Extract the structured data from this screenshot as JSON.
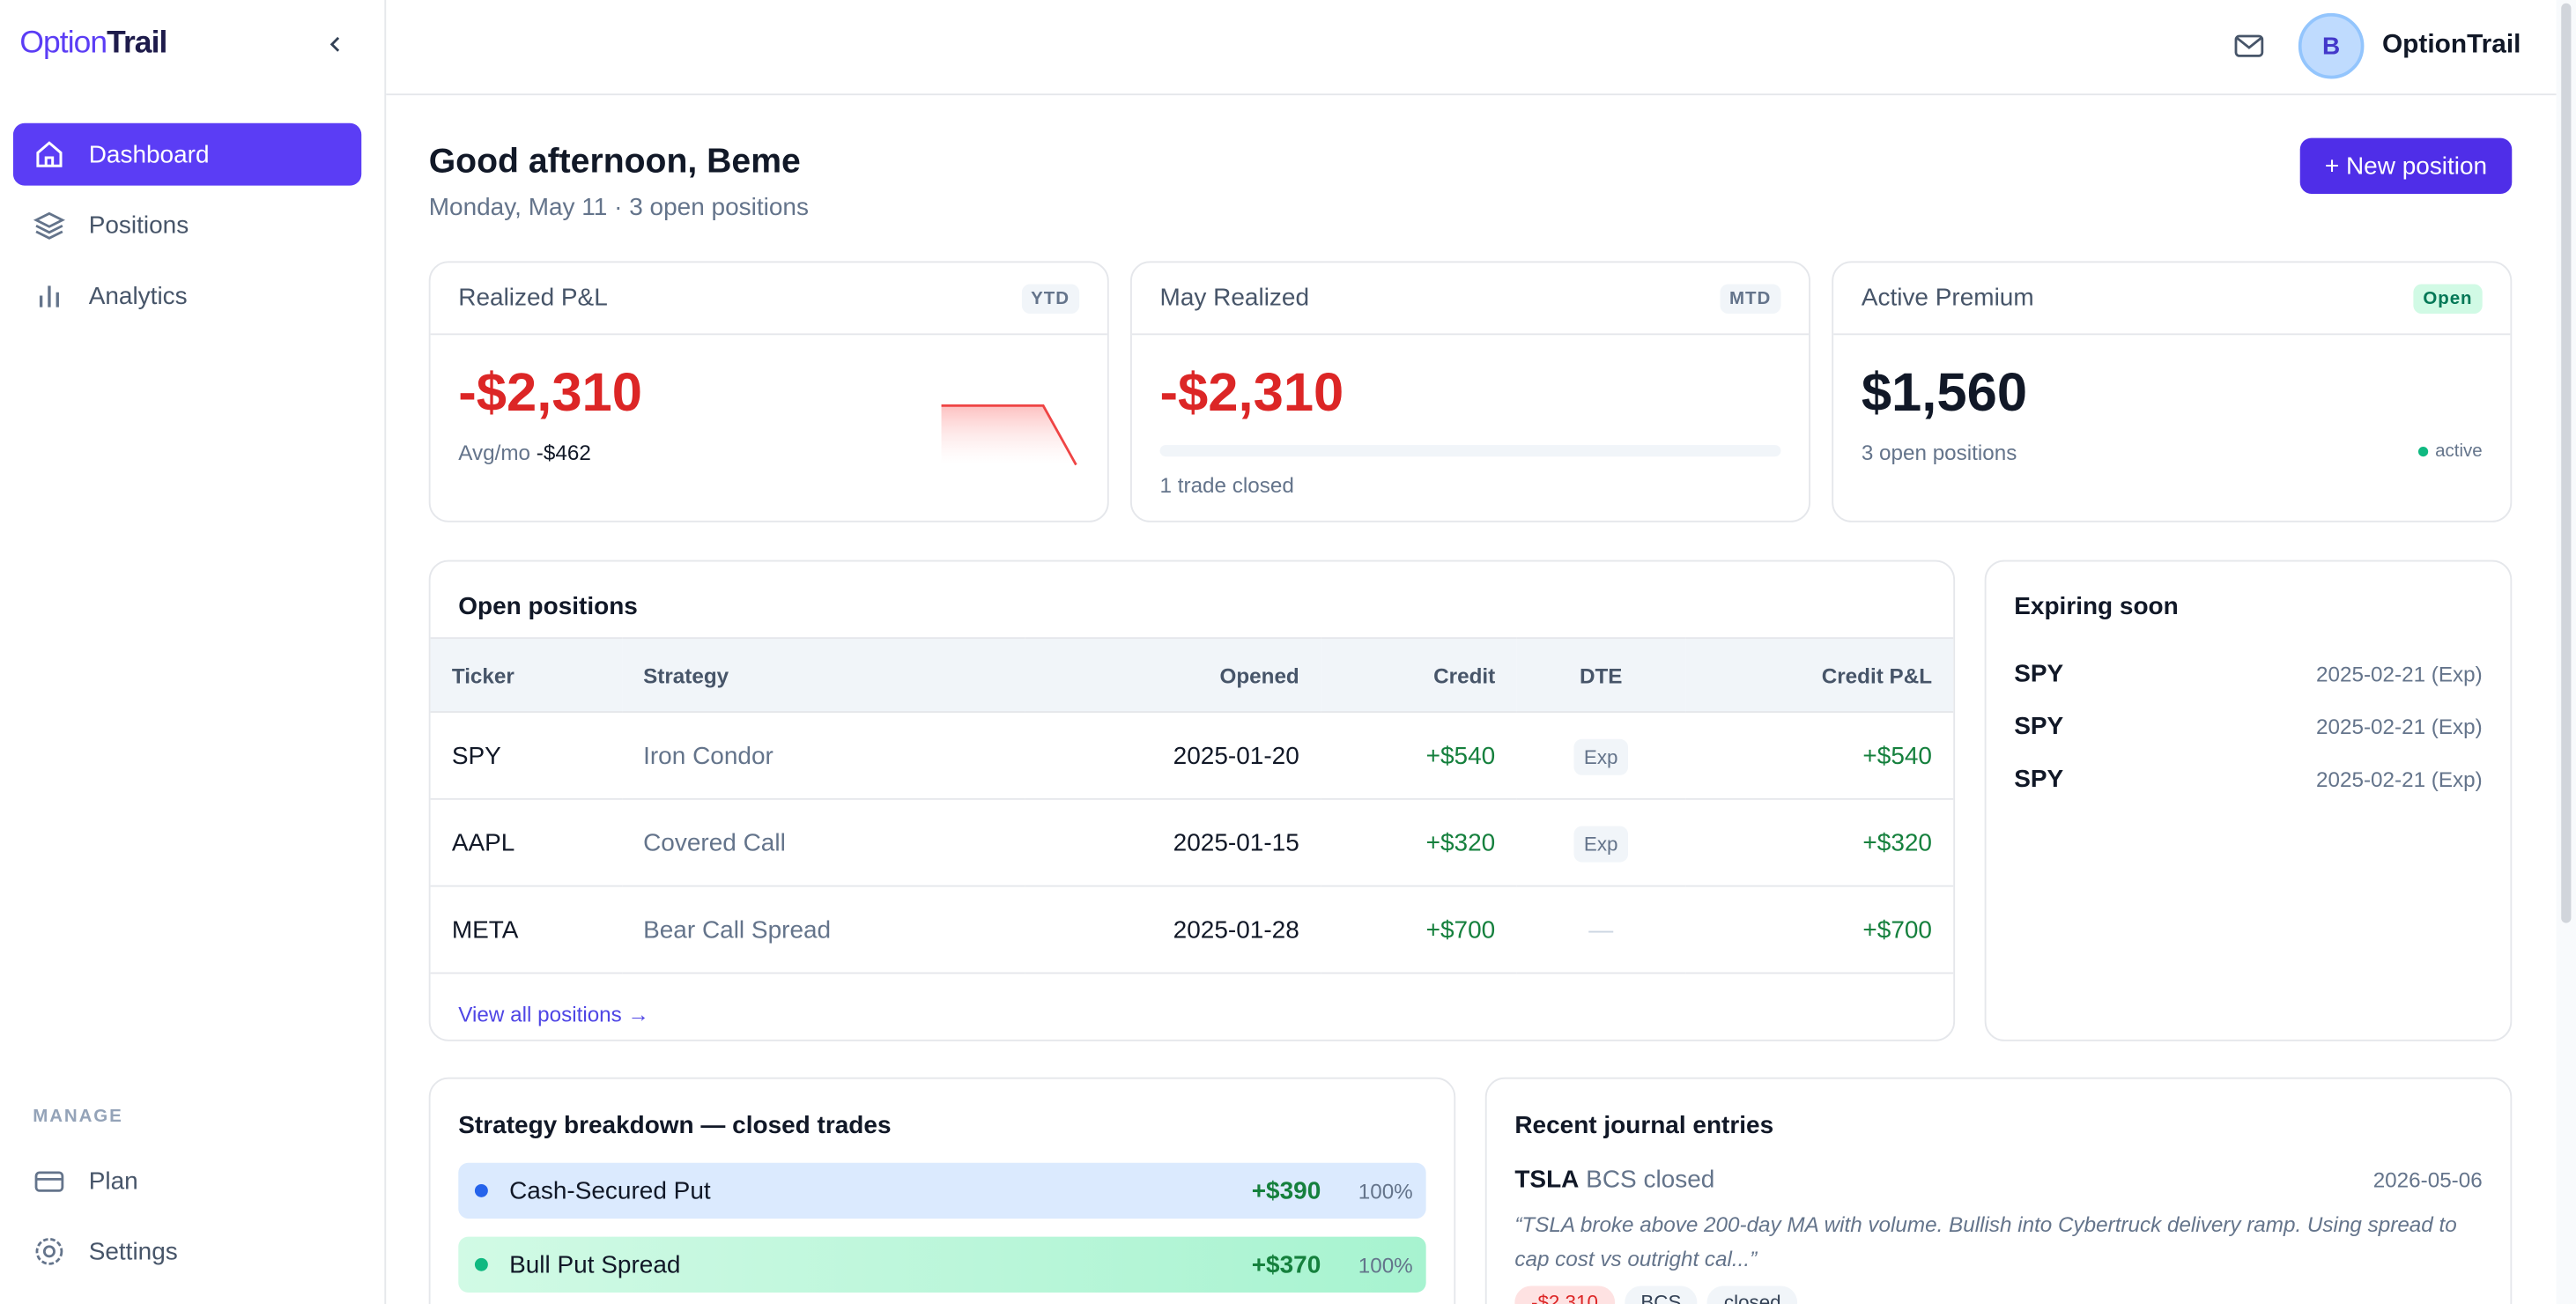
{
  "sidebar": {
    "logo_a": "Option",
    "logo_b": "Trail",
    "nav": [
      "Dashboard",
      "Positions",
      "Analytics"
    ],
    "manage_label": "MANAGE",
    "manage": [
      "Plan",
      "Settings"
    ]
  },
  "topbar": {
    "avatar": "B",
    "user": "OptionTrail"
  },
  "header": {
    "greeting": "Good afternoon, Beme",
    "subtitle": "Monday, May 11 · 3 open positions",
    "button": "+ New position"
  },
  "cards": [
    {
      "title": "Realized P&L",
      "badge": "YTD",
      "value": "-$2,310",
      "note_label": "Avg/mo",
      "note_value": "-$462"
    },
    {
      "title": "May Realized",
      "badge": "MTD",
      "value": "-$2,310",
      "note": "1 trade closed"
    },
    {
      "title": "Active Premium",
      "badge": "Open",
      "value": "$1,560",
      "note": "3 open positions",
      "status": "active"
    }
  ],
  "open_positions": {
    "title": "Open positions",
    "columns": [
      "Ticker",
      "Strategy",
      "Opened",
      "Credit",
      "DTE",
      "Credit P&L"
    ],
    "rows": [
      [
        "SPY",
        "Iron Condor",
        "2025-01-20",
        "+$540",
        "Exp",
        "+$540"
      ],
      [
        "AAPL",
        "Covered Call",
        "2025-01-15",
        "+$320",
        "Exp",
        "+$320"
      ],
      [
        "META",
        "Bear Call Spread",
        "2025-01-28",
        "+$700",
        "—",
        "+$700"
      ]
    ],
    "link": "View all positions →"
  },
  "expiring": {
    "title": "Expiring soon",
    "items": [
      {
        "ticker": "SPY",
        "date": "2025-02-21 (Exp)"
      },
      {
        "ticker": "SPY",
        "date": "2025-02-21 (Exp)"
      },
      {
        "ticker": "SPY",
        "date": "2025-02-21 (Exp)"
      }
    ]
  },
  "strategy": {
    "title": "Strategy breakdown — closed trades",
    "rows": [
      {
        "name": "Cash-Secured Put",
        "pnl": "+$390",
        "share": "100%"
      },
      {
        "name": "Bull Put Spread",
        "pnl": "+$370",
        "share": "100%"
      }
    ]
  },
  "journal": {
    "title": "Recent journal entries",
    "entries": [
      {
        "ticker": "TSLA",
        "action": "BCS closed",
        "date": "2026-05-06",
        "quote": "“TSLA broke above 200-day MA with volume. Bullish into Cybertruck delivery ramp. Using spread to cap cost vs outright cal...”",
        "tags": [
          "-$2,310",
          "BCS",
          "closed"
        ]
      }
    ]
  }
}
